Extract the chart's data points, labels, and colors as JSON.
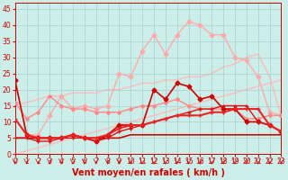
{
  "xlabel": "Vent moyen/en rafales ( km/h )",
  "xlim": [
    0,
    23
  ],
  "ylim": [
    0,
    47
  ],
  "yticks": [
    0,
    5,
    10,
    15,
    20,
    25,
    30,
    35,
    40,
    45
  ],
  "xticks": [
    0,
    1,
    2,
    3,
    4,
    5,
    6,
    7,
    8,
    9,
    10,
    11,
    12,
    13,
    14,
    15,
    16,
    17,
    18,
    19,
    20,
    21,
    22,
    23
  ],
  "bg_color": "#cceee8",
  "grid_color": "#aacccc",
  "lines": [
    {
      "y": [
        23,
        6,
        6,
        12,
        18,
        14,
        15,
        14,
        15,
        25,
        24,
        32,
        37,
        31,
        37,
        41,
        40,
        37,
        37,
        30,
        29,
        24,
        13,
        12
      ],
      "color": "#ffaaaa",
      "lw": 1.0,
      "marker": "D",
      "ms": 2.5,
      "zorder": 2
    },
    {
      "y": [
        15,
        16,
        17,
        18,
        18,
        19,
        19,
        19,
        20,
        20,
        21,
        22,
        22,
        23,
        23,
        24,
        24,
        25,
        27,
        28,
        30,
        31,
        24,
        12
      ],
      "color": "#ffbbbb",
      "lw": 1.0,
      "marker": null,
      "ms": 0,
      "zorder": 1
    },
    {
      "y": [
        0,
        1,
        2,
        3,
        4,
        5,
        6,
        7,
        8,
        9,
        10,
        11,
        12,
        13,
        14,
        15,
        16,
        17,
        18,
        19,
        20,
        21,
        22,
        23
      ],
      "color": "#ffbbbb",
      "lw": 1.0,
      "marker": null,
      "ms": 0,
      "zorder": 1
    },
    {
      "y": [
        16,
        11,
        13,
        18,
        15,
        14,
        14,
        13,
        13,
        13,
        14,
        15,
        15,
        16,
        17,
        15,
        14,
        14,
        14,
        14,
        11,
        11,
        12,
        12
      ],
      "color": "#ff8888",
      "lw": 1.0,
      "marker": "D",
      "ms": 2.0,
      "zorder": 3
    },
    {
      "y": [
        11,
        6,
        5,
        5,
        5,
        6,
        5,
        5,
        6,
        8,
        9,
        9,
        10,
        11,
        12,
        12,
        12,
        13,
        13,
        14,
        14,
        14,
        9,
        7
      ],
      "color": "#ee2222",
      "lw": 1.5,
      "marker": "+",
      "ms": 3.5,
      "zorder": 6
    },
    {
      "y": [
        23,
        6,
        5,
        5,
        5,
        6,
        5,
        4,
        6,
        9,
        9,
        9,
        20,
        17,
        22,
        21,
        17,
        18,
        14,
        14,
        10,
        10,
        9,
        7
      ],
      "color": "#cc0000",
      "lw": 1.2,
      "marker": "D",
      "ms": 2.5,
      "zorder": 5
    },
    {
      "y": [
        5,
        5,
        5,
        5,
        5,
        6,
        5,
        5,
        5,
        5,
        6,
        6,
        6,
        6,
        6,
        6,
        6,
        6,
        6,
        6,
        6,
        6,
        6,
        6
      ],
      "color": "#cc0000",
      "lw": 1.2,
      "marker": null,
      "ms": 0,
      "zorder": 4
    },
    {
      "y": [
        5,
        5,
        4,
        4,
        5,
        5,
        5,
        4,
        5,
        7,
        8,
        9,
        10,
        11,
        12,
        13,
        14,
        14,
        15,
        15,
        15,
        10,
        9,
        7
      ],
      "color": "#dd1111",
      "lw": 1.0,
      "marker": "+",
      "ms": 3,
      "zorder": 5
    }
  ],
  "arrow_color": "#cc0000",
  "xlabel_fontsize": 7,
  "tick_fontsize": 5.5,
  "tick_color": "#cc0000"
}
